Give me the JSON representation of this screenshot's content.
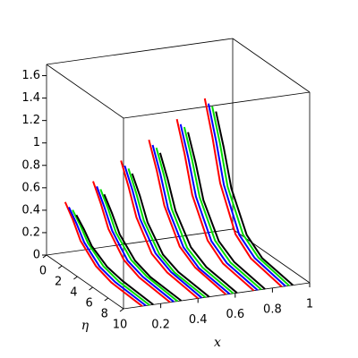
{
  "chart_data": {
    "type": "line3d",
    "x_label": "x",
    "y_label": "η",
    "xlim": [
      0,
      1
    ],
    "ylim": [
      0,
      10
    ],
    "zlim": [
      0,
      1.7
    ],
    "xticks": [
      0.2,
      0.4,
      0.6,
      0.8,
      1
    ],
    "yticks": [
      0,
      2,
      4,
      6,
      8,
      10
    ],
    "zticks": [
      0,
      0.2,
      0.4,
      0.6,
      0.8,
      1,
      1.2,
      1.4,
      1.6
    ],
    "series": [
      {
        "color": "#ff0000",
        "x": [
          0.1,
          0.1,
          0.1,
          0.1,
          0.1,
          0.1,
          null,
          0.25,
          0.25,
          0.25,
          0.25,
          0.25,
          0.25,
          null,
          0.4,
          0.4,
          0.4,
          0.4,
          0.4,
          0.4,
          null,
          0.55,
          0.55,
          0.55,
          0.55,
          0.55,
          0.55,
          null,
          0.7,
          0.7,
          0.7,
          0.7,
          0.7,
          0.7,
          null,
          0.85,
          0.85,
          0.85,
          0.85,
          0.85,
          0.85
        ],
        "y": [
          10,
          6,
          4,
          2,
          1,
          0,
          null,
          10,
          6,
          4,
          2,
          1,
          0,
          null,
          10,
          6,
          4,
          2,
          1,
          0,
          null,
          10,
          6,
          4,
          2,
          1,
          0,
          null,
          10,
          6,
          4,
          2,
          1,
          0,
          null,
          10,
          6,
          4,
          2,
          1,
          0
        ],
        "z": [
          0,
          0.02,
          0.07,
          0.2,
          0.34,
          0.45,
          null,
          0,
          0.03,
          0.09,
          0.27,
          0.45,
          0.6,
          null,
          0,
          0.04,
          0.11,
          0.34,
          0.56,
          0.75,
          null,
          0,
          0.05,
          0.14,
          0.41,
          0.68,
          0.9,
          null,
          0,
          0.05,
          0.16,
          0.47,
          0.79,
          1.05,
          null,
          0,
          0.06,
          0.18,
          0.54,
          0.9,
          1.2
        ]
      },
      {
        "color": "#0000ff",
        "x": [
          0.12,
          0.12,
          0.12,
          0.12,
          0.12,
          0.12,
          null,
          0.27,
          0.27,
          0.27,
          0.27,
          0.27,
          0.27,
          null,
          0.42,
          0.42,
          0.42,
          0.42,
          0.42,
          0.42,
          null,
          0.57,
          0.57,
          0.57,
          0.57,
          0.57,
          0.57,
          null,
          0.72,
          0.72,
          0.72,
          0.72,
          0.72,
          0.72,
          null,
          0.87,
          0.87,
          0.87,
          0.87,
          0.87,
          0.87
        ],
        "y": [
          10,
          6,
          4,
          2,
          1,
          0,
          null,
          10,
          6,
          4,
          2,
          1,
          0,
          null,
          10,
          6,
          4,
          2,
          1,
          0,
          null,
          10,
          6,
          4,
          2,
          1,
          0,
          null,
          10,
          6,
          4,
          2,
          1,
          0,
          null,
          10,
          6,
          4,
          2,
          1,
          0
        ],
        "z": [
          0,
          0.02,
          0.06,
          0.18,
          0.3,
          0.4,
          null,
          0,
          0.03,
          0.08,
          0.25,
          0.41,
          0.55,
          null,
          0,
          0.04,
          0.11,
          0.32,
          0.53,
          0.7,
          null,
          0,
          0.04,
          0.13,
          0.38,
          0.64,
          0.85,
          null,
          0,
          0.05,
          0.15,
          0.45,
          0.75,
          1.0,
          null,
          0,
          0.06,
          0.17,
          0.52,
          0.86,
          1.15
        ]
      },
      {
        "color": "#00dd00",
        "x": [
          0.14,
          0.14,
          0.14,
          0.14,
          0.14,
          0.14,
          null,
          0.29,
          0.29,
          0.29,
          0.29,
          0.29,
          0.29,
          null,
          0.44,
          0.44,
          0.44,
          0.44,
          0.44,
          0.44,
          null,
          0.59,
          0.59,
          0.59,
          0.59,
          0.59,
          0.59,
          null,
          0.74,
          0.74,
          0.74,
          0.74,
          0.74,
          0.74,
          null,
          0.89,
          0.89,
          0.89,
          0.89,
          0.89,
          0.89
        ],
        "y": [
          10,
          6,
          4,
          2,
          1,
          0,
          null,
          10,
          6,
          4,
          2,
          1,
          0,
          null,
          10,
          6,
          4,
          2,
          1,
          0,
          null,
          10,
          6,
          4,
          2,
          1,
          0,
          null,
          10,
          6,
          4,
          2,
          1,
          0,
          null,
          10,
          6,
          4,
          2,
          1,
          0
        ],
        "z": [
          0,
          0.02,
          0.06,
          0.17,
          0.28,
          0.37,
          null,
          0,
          0.03,
          0.08,
          0.23,
          0.39,
          0.52,
          null,
          0,
          0.03,
          0.1,
          0.3,
          0.5,
          0.67,
          null,
          0,
          0.04,
          0.12,
          0.37,
          0.62,
          0.82,
          null,
          0,
          0.05,
          0.15,
          0.44,
          0.73,
          0.97,
          null,
          0,
          0.06,
          0.17,
          0.5,
          0.84,
          1.12
        ]
      },
      {
        "color": "#000000",
        "x": [
          0.16,
          0.16,
          0.16,
          0.16,
          0.16,
          0.16,
          null,
          0.31,
          0.31,
          0.31,
          0.31,
          0.31,
          0.31,
          null,
          0.46,
          0.46,
          0.46,
          0.46,
          0.46,
          0.46,
          null,
          0.61,
          0.61,
          0.61,
          0.61,
          0.61,
          0.61,
          null,
          0.76,
          0.76,
          0.76,
          0.76,
          0.76,
          0.76,
          null,
          0.91,
          0.91,
          0.91,
          0.91,
          0.91,
          0.91
        ],
        "y": [
          10,
          6,
          4,
          2,
          1,
          0,
          null,
          10,
          6,
          4,
          2,
          1,
          0,
          null,
          10,
          6,
          4,
          2,
          1,
          0,
          null,
          10,
          6,
          4,
          2,
          1,
          0,
          null,
          10,
          6,
          4,
          2,
          1,
          0,
          null,
          10,
          6,
          4,
          2,
          1,
          0
        ],
        "z": [
          0,
          0.02,
          0.05,
          0.14,
          0.24,
          0.32,
          null,
          0,
          0.02,
          0.07,
          0.21,
          0.35,
          0.47,
          null,
          0,
          0.03,
          0.09,
          0.28,
          0.47,
          0.62,
          null,
          0,
          0.04,
          0.12,
          0.35,
          0.58,
          0.77,
          null,
          0,
          0.05,
          0.14,
          0.41,
          0.69,
          0.92,
          null,
          0,
          0.05,
          0.16,
          0.48,
          0.8,
          1.07
        ]
      }
    ]
  }
}
